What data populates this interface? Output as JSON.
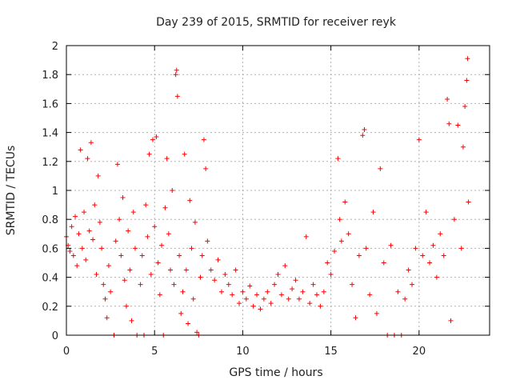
{
  "chart_data": {
    "type": "scatter",
    "title": "Day 239 of 2015, SRMTID for receiver reyk",
    "xlabel": "GPS time / hours",
    "ylabel": "SRMTID / TECUs",
    "xlim": [
      0,
      24
    ],
    "ylim": [
      0,
      2
    ],
    "x_ticks": [
      0,
      5,
      10,
      15,
      20
    ],
    "x_tick_labels": [
      "0",
      "5",
      "10",
      "15",
      "20"
    ],
    "y_ticks": [
      0,
      0.2,
      0.4,
      0.6,
      0.8,
      1,
      1.2,
      1.4,
      1.6,
      1.8,
      2
    ],
    "y_tick_labels": [
      "0",
      "0.2",
      "0.4",
      "0.6",
      "0.8",
      "1",
      "1.2",
      "1.4",
      "1.6",
      "1.8",
      "2"
    ],
    "grid": true,
    "marker": "+",
    "color": "#ff0000",
    "series": [
      {
        "name": "SRMTID",
        "points": [
          [
            0.0,
            0.68
          ],
          [
            0.1,
            0.62
          ],
          [
            0.2,
            0.58
          ],
          [
            0.3,
            0.75
          ],
          [
            0.4,
            0.55
          ],
          [
            0.5,
            0.82
          ],
          [
            0.6,
            0.48
          ],
          [
            0.7,
            0.7
          ],
          [
            0.8,
            1.28
          ],
          [
            0.9,
            0.6
          ],
          [
            1.0,
            0.85
          ],
          [
            1.1,
            0.52
          ],
          [
            1.2,
            1.22
          ],
          [
            1.3,
            0.72
          ],
          [
            1.4,
            1.33
          ],
          [
            1.5,
            0.66
          ],
          [
            1.6,
            0.9
          ],
          [
            1.7,
            0.42
          ],
          [
            1.8,
            1.1
          ],
          [
            1.9,
            0.78
          ],
          [
            2.0,
            0.6
          ],
          [
            2.1,
            0.35
          ],
          [
            2.2,
            0.25
          ],
          [
            2.3,
            0.12
          ],
          [
            2.4,
            0.48
          ],
          [
            2.5,
            0.3
          ],
          [
            2.7,
            0.0
          ],
          [
            2.8,
            0.65
          ],
          [
            2.9,
            1.18
          ],
          [
            3.0,
            0.8
          ],
          [
            3.1,
            0.55
          ],
          [
            3.2,
            0.95
          ],
          [
            3.3,
            0.38
          ],
          [
            3.4,
            0.2
          ],
          [
            3.5,
            0.72
          ],
          [
            3.6,
            0.45
          ],
          [
            3.7,
            0.1
          ],
          [
            3.8,
            0.85
          ],
          [
            3.9,
            0.6
          ],
          [
            4.0,
            0.0
          ],
          [
            4.2,
            0.35
          ],
          [
            4.3,
            0.55
          ],
          [
            4.4,
            0.0
          ],
          [
            4.5,
            0.9
          ],
          [
            4.6,
            0.68
          ],
          [
            4.7,
            1.25
          ],
          [
            4.8,
            0.42
          ],
          [
            4.9,
            1.35
          ],
          [
            5.0,
            0.75
          ],
          [
            5.1,
            1.37
          ],
          [
            5.2,
            0.5
          ],
          [
            5.3,
            0.28
          ],
          [
            5.4,
            0.62
          ],
          [
            5.5,
            0.0
          ],
          [
            5.6,
            0.88
          ],
          [
            5.7,
            1.22
          ],
          [
            5.8,
            0.7
          ],
          [
            5.9,
            0.45
          ],
          [
            6.0,
            1.0
          ],
          [
            6.1,
            0.35
          ],
          [
            6.2,
            1.8
          ],
          [
            6.25,
            1.83
          ],
          [
            6.3,
            1.65
          ],
          [
            6.4,
            0.55
          ],
          [
            6.5,
            0.15
          ],
          [
            6.6,
            0.3
          ],
          [
            6.7,
            1.25
          ],
          [
            6.8,
            0.45
          ],
          [
            6.9,
            0.08
          ],
          [
            7.0,
            0.93
          ],
          [
            7.1,
            0.6
          ],
          [
            7.2,
            0.25
          ],
          [
            7.3,
            0.78
          ],
          [
            7.4,
            0.02
          ],
          [
            7.5,
            0.0
          ],
          [
            7.6,
            0.4
          ],
          [
            7.7,
            0.55
          ],
          [
            7.8,
            1.35
          ],
          [
            7.9,
            1.15
          ],
          [
            8.0,
            0.65
          ],
          [
            8.2,
            0.45
          ],
          [
            8.4,
            0.38
          ],
          [
            8.6,
            0.52
          ],
          [
            8.8,
            0.3
          ],
          [
            9.0,
            0.42
          ],
          [
            9.2,
            0.35
          ],
          [
            9.4,
            0.28
          ],
          [
            9.6,
            0.45
          ],
          [
            9.8,
            0.22
          ],
          [
            10.0,
            0.3
          ],
          [
            10.2,
            0.25
          ],
          [
            10.4,
            0.34
          ],
          [
            10.6,
            0.2
          ],
          [
            10.8,
            0.28
          ],
          [
            11.0,
            0.18
          ],
          [
            11.2,
            0.25
          ],
          [
            11.4,
            0.3
          ],
          [
            11.6,
            0.22
          ],
          [
            11.8,
            0.35
          ],
          [
            12.0,
            0.42
          ],
          [
            12.2,
            0.28
          ],
          [
            12.4,
            0.48
          ],
          [
            12.6,
            0.25
          ],
          [
            12.8,
            0.32
          ],
          [
            13.0,
            0.38
          ],
          [
            13.2,
            0.25
          ],
          [
            13.4,
            0.3
          ],
          [
            13.6,
            0.68
          ],
          [
            13.8,
            0.22
          ],
          [
            14.0,
            0.35
          ],
          [
            14.2,
            0.28
          ],
          [
            14.4,
            0.2
          ],
          [
            14.6,
            0.3
          ],
          [
            14.8,
            0.5
          ],
          [
            15.0,
            0.42
          ],
          [
            15.2,
            0.58
          ],
          [
            15.4,
            1.22
          ],
          [
            15.5,
            0.8
          ],
          [
            15.6,
            0.65
          ],
          [
            15.8,
            0.92
          ],
          [
            16.0,
            0.7
          ],
          [
            16.2,
            0.35
          ],
          [
            16.4,
            0.12
          ],
          [
            16.6,
            0.55
          ],
          [
            16.8,
            1.38
          ],
          [
            16.9,
            1.42
          ],
          [
            17.0,
            0.6
          ],
          [
            17.2,
            0.28
          ],
          [
            17.4,
            0.85
          ],
          [
            17.6,
            0.15
          ],
          [
            17.8,
            1.15
          ],
          [
            18.0,
            0.5
          ],
          [
            18.2,
            0.0
          ],
          [
            18.4,
            0.62
          ],
          [
            18.6,
            0.0
          ],
          [
            18.8,
            0.3
          ],
          [
            19.0,
            0.0
          ],
          [
            19.2,
            0.25
          ],
          [
            19.4,
            0.45
          ],
          [
            19.6,
            0.35
          ],
          [
            19.8,
            0.6
          ],
          [
            20.0,
            1.35
          ],
          [
            20.2,
            0.55
          ],
          [
            20.4,
            0.85
          ],
          [
            20.6,
            0.5
          ],
          [
            20.8,
            0.62
          ],
          [
            21.0,
            0.4
          ],
          [
            21.2,
            0.7
          ],
          [
            21.4,
            0.55
          ],
          [
            21.6,
            1.63
          ],
          [
            21.7,
            1.46
          ],
          [
            21.8,
            0.1
          ],
          [
            22.0,
            0.8
          ],
          [
            22.2,
            1.45
          ],
          [
            22.4,
            0.6
          ],
          [
            22.5,
            1.3
          ],
          [
            22.6,
            1.58
          ],
          [
            22.7,
            1.76
          ],
          [
            22.75,
            1.91
          ],
          [
            22.8,
            0.92
          ]
        ]
      }
    ]
  }
}
